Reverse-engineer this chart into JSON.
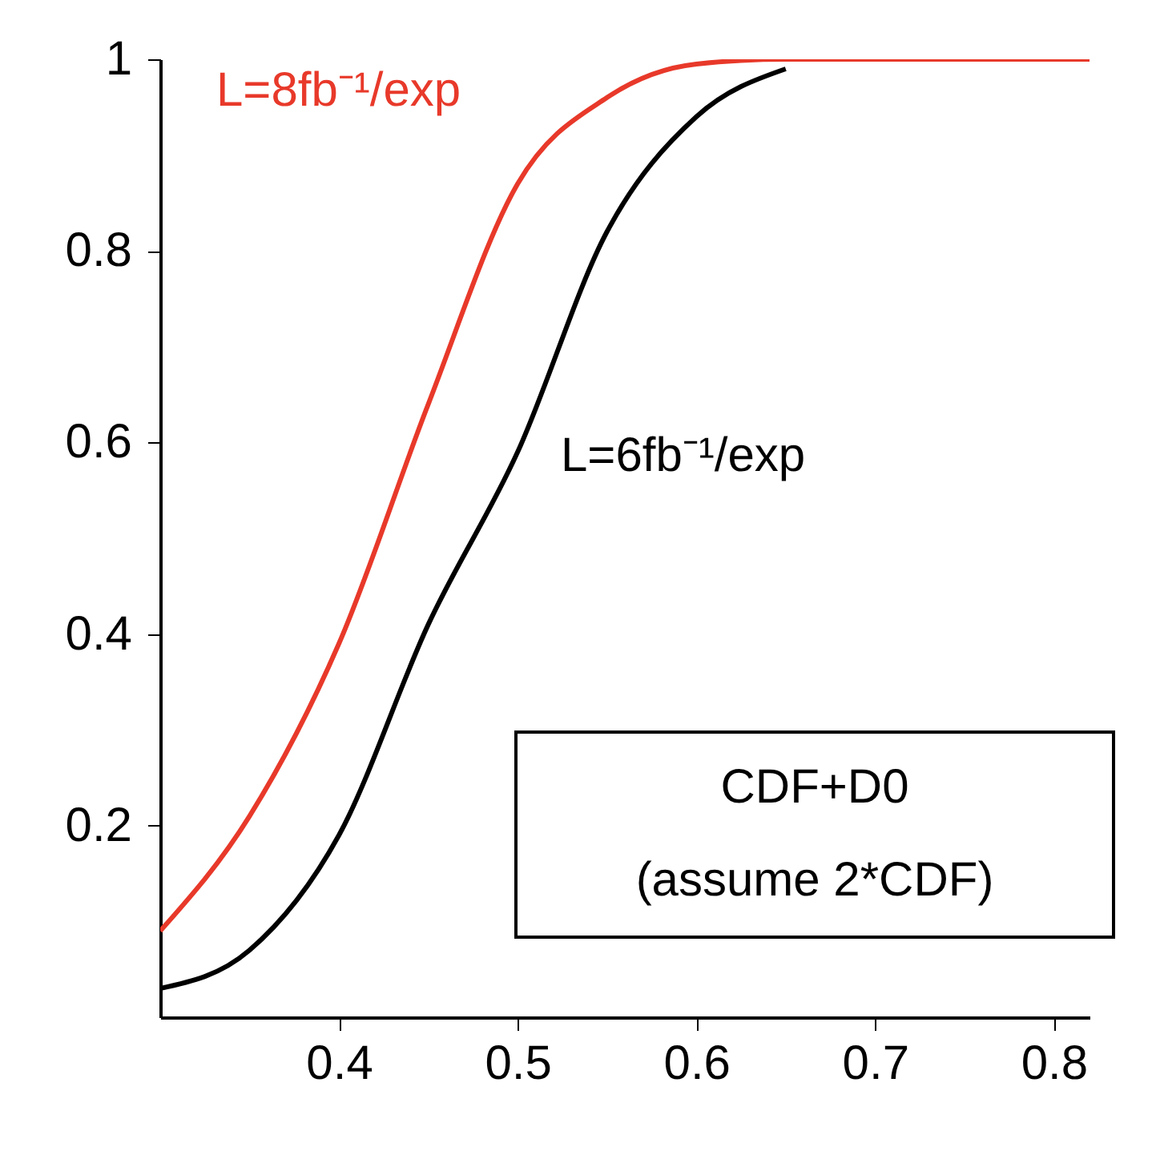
{
  "chart_data": {
    "type": "line",
    "x": [
      0.3,
      0.35,
      0.4,
      0.45,
      0.5,
      0.55,
      0.6,
      0.65,
      0.7,
      0.75,
      0.8,
      0.82
    ],
    "series": [
      {
        "name": "L=8fb⁻¹/exp",
        "color": "#e8392a",
        "values": [
          0.09,
          0.21,
          0.39,
          0.64,
          0.87,
          0.96,
          0.995,
          1,
          1,
          1,
          1,
          1
        ]
      },
      {
        "name": "L=6fb⁻¹/exp",
        "color": "#000000",
        "values": [
          0.03,
          0.07,
          0.19,
          0.41,
          0.59,
          0.82,
          0.94,
          0.99,
          null,
          null,
          null,
          null
        ]
      }
    ],
    "xlim": [
      0.3,
      0.82
    ],
    "xticks": [
      0.4,
      0.5,
      0.6,
      0.7,
      0.8
    ],
    "ylim": [
      0,
      1
    ],
    "yticks": [
      0.2,
      0.4,
      0.6,
      0.8,
      1
    ],
    "annotations": [
      "CDF+D0",
      "(assume 2*CDF)"
    ],
    "grid": false,
    "marker": "none",
    "line_style": "solid"
  }
}
